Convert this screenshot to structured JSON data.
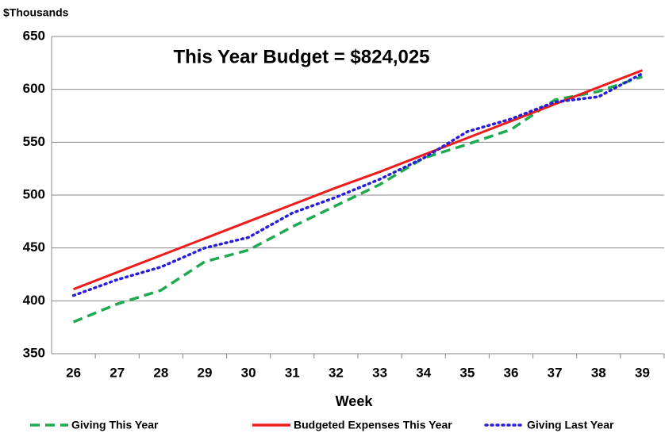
{
  "chart_data": {
    "type": "line",
    "annotation": "This Year Budget = $824,025",
    "y_label": "$Thousands",
    "x_label": "Week",
    "categories": [
      "26",
      "27",
      "28",
      "29",
      "30",
      "31",
      "32",
      "33",
      "34",
      "35",
      "36",
      "37",
      "38",
      "39"
    ],
    "series": [
      {
        "name": "Giving This Year",
        "color": "#1faa4f",
        "style": "dashed",
        "values": [
          380,
          397,
          410,
          437,
          448,
          470,
          490,
          510,
          535,
          548,
          562,
          590,
          598,
          612
        ]
      },
      {
        "name": "Budgeted Expenses This Year",
        "color": "#ee1c1c",
        "style": "solid",
        "values": [
          411,
          427,
          443,
          459,
          475,
          491,
          507,
          522,
          538,
          554,
          570,
          586,
          602,
          618
        ]
      },
      {
        "name": "Giving Last Year",
        "color": "#2a1fd6",
        "style": "dotted",
        "values": [
          405,
          420,
          432,
          450,
          460,
          483,
          498,
          515,
          535,
          560,
          572,
          588,
          593,
          615
        ]
      }
    ],
    "ylim": [
      350,
      650
    ],
    "yticks": [
      350,
      400,
      450,
      500,
      550,
      600,
      650
    ],
    "grid": true
  }
}
